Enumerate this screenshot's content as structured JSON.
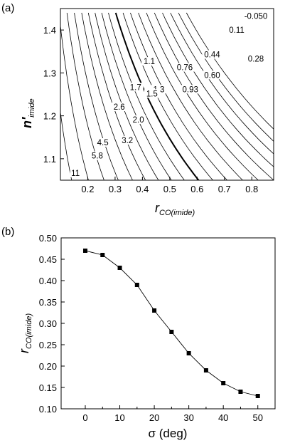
{
  "chart_data": [
    {
      "panel_label": "(a)",
      "type": "contour",
      "xlabel": {
        "main": "r",
        "sub": "CO(imide)"
      },
      "ylabel": {
        "main": "n′",
        "sub": "imide"
      },
      "xlim": [
        0.1,
        0.88
      ],
      "ylim": [
        1.05,
        1.45
      ],
      "xticks": [
        "0.2",
        "0.3",
        "0.4",
        "0.5",
        "0.6",
        "0.7",
        "0.8"
      ],
      "yticks": [
        "1.1",
        "1.2",
        "1.3",
        "1.4"
      ],
      "contour_labels": [
        {
          "text": "-0.050",
          "x": 0.815,
          "y": 1.428
        },
        {
          "text": "0.11",
          "x": 0.745,
          "y": 1.395
        },
        {
          "text": "0.44",
          "x": 0.655,
          "y": 1.338
        },
        {
          "text": "0.28",
          "x": 0.815,
          "y": 1.328
        },
        {
          "text": "1.1",
          "x": 0.425,
          "y": 1.322
        },
        {
          "text": "0.76",
          "x": 0.555,
          "y": 1.308
        },
        {
          "text": "0.60",
          "x": 0.655,
          "y": 1.29
        },
        {
          "text": "1.7",
          "x": 0.375,
          "y": 1.262
        },
        {
          "text": "1.3",
          "x": 0.46,
          "y": 1.257
        },
        {
          "text": "0.93",
          "x": 0.575,
          "y": 1.257
        },
        {
          "text": "1.5",
          "x": 0.435,
          "y": 1.247
        },
        {
          "text": "2.6",
          "x": 0.315,
          "y": 1.216
        },
        {
          "text": "2.0",
          "x": 0.385,
          "y": 1.186
        },
        {
          "text": "4.5",
          "x": 0.255,
          "y": 1.133
        },
        {
          "text": "3.2",
          "x": 0.345,
          "y": 1.138
        },
        {
          "text": "5.8",
          "x": 0.235,
          "y": 1.102
        },
        {
          "text": "11",
          "x": 0.155,
          "y": 1.062
        }
      ]
    },
    {
      "panel_label": "(b)",
      "type": "line",
      "xlabel": "σ (deg)",
      "ylabel": {
        "main": "r",
        "sub": "CO(imide)"
      },
      "xlim": [
        -7,
        55
      ],
      "ylim": [
        0.1,
        0.5
      ],
      "xticks": [
        "0",
        "10",
        "20",
        "30",
        "40",
        "50"
      ],
      "yticks": [
        "0.10",
        "0.15",
        "0.20",
        "0.25",
        "0.30",
        "0.35",
        "0.40",
        "0.45",
        "0.50"
      ],
      "x": [
        0,
        5,
        10,
        15,
        20,
        25,
        30,
        35,
        40,
        45,
        50
      ],
      "y": [
        0.47,
        0.46,
        0.43,
        0.39,
        0.33,
        0.28,
        0.23,
        0.19,
        0.16,
        0.14,
        0.13
      ]
    }
  ]
}
